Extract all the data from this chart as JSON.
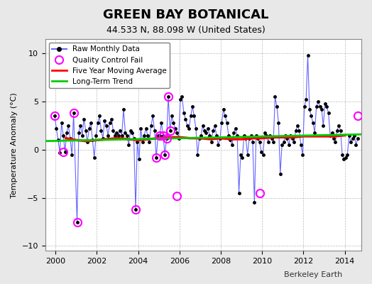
{
  "title": "GREEN BAY BOTANICAL",
  "subtitle": "44.533 N, 88.098 W (United States)",
  "ylabel": "Temperature Anomaly (°C)",
  "credit": "Berkeley Earth",
  "xlim": [
    1999.5,
    2014.8
  ],
  "ylim": [
    -10.5,
    11.5
  ],
  "yticks": [
    -10,
    -5,
    0,
    5,
    10
  ],
  "xticks": [
    2000,
    2002,
    2004,
    2006,
    2008,
    2010,
    2012,
    2014
  ],
  "bg_color": "#e8e8e8",
  "plot_bg_color": "#ffffff",
  "raw_color": "#6666ff",
  "raw_dot_color": "#000000",
  "qc_color": "#ff00ff",
  "ma_color": "#ff0000",
  "trend_color": "#00cc00",
  "raw_data_x": [
    1999.958,
    2000.042,
    2000.125,
    2000.208,
    2000.292,
    2000.375,
    2000.458,
    2000.542,
    2000.625,
    2000.708,
    2000.792,
    2000.875,
    2001.042,
    2001.125,
    2001.208,
    2001.292,
    2001.375,
    2001.458,
    2001.542,
    2001.625,
    2001.708,
    2001.792,
    2001.875,
    2001.958,
    2002.042,
    2002.125,
    2002.208,
    2002.292,
    2002.375,
    2002.458,
    2002.542,
    2002.625,
    2002.708,
    2002.792,
    2002.875,
    2002.958,
    2003.042,
    2003.125,
    2003.208,
    2003.292,
    2003.375,
    2003.458,
    2003.542,
    2003.625,
    2003.708,
    2003.792,
    2003.875,
    2003.958,
    2004.042,
    2004.125,
    2004.208,
    2004.292,
    2004.375,
    2004.458,
    2004.542,
    2004.625,
    2004.708,
    2004.792,
    2004.875,
    2004.958,
    2005.042,
    2005.125,
    2005.208,
    2005.292,
    2005.375,
    2005.458,
    2005.542,
    2005.625,
    2005.708,
    2005.792,
    2005.875,
    2005.958,
    2006.042,
    2006.125,
    2006.208,
    2006.292,
    2006.375,
    2006.458,
    2006.542,
    2006.625,
    2006.708,
    2006.792,
    2006.875,
    2006.958,
    2007.042,
    2007.125,
    2007.208,
    2007.292,
    2007.375,
    2007.458,
    2007.542,
    2007.625,
    2007.708,
    2007.792,
    2007.875,
    2007.958,
    2008.042,
    2008.125,
    2008.208,
    2008.292,
    2008.375,
    2008.458,
    2008.542,
    2008.625,
    2008.708,
    2008.792,
    2008.875,
    2008.958,
    2009.042,
    2009.125,
    2009.208,
    2009.292,
    2009.375,
    2009.458,
    2009.542,
    2009.625,
    2009.708,
    2009.792,
    2009.875,
    2009.958,
    2010.042,
    2010.125,
    2010.208,
    2010.292,
    2010.375,
    2010.458,
    2010.542,
    2010.625,
    2010.708,
    2010.792,
    2010.875,
    2010.958,
    2011.042,
    2011.125,
    2011.208,
    2011.292,
    2011.375,
    2011.458,
    2011.542,
    2011.625,
    2011.708,
    2011.792,
    2011.875,
    2011.958,
    2012.042,
    2012.125,
    2012.208,
    2012.292,
    2012.375,
    2012.458,
    2012.542,
    2012.625,
    2012.708,
    2012.792,
    2012.875,
    2012.958,
    2013.042,
    2013.125,
    2013.208,
    2013.292,
    2013.375,
    2013.458,
    2013.542,
    2013.625,
    2013.708,
    2013.792,
    2013.875,
    2013.958,
    2014.042,
    2014.125,
    2014.208,
    2014.292,
    2014.375,
    2014.458,
    2014.542,
    2014.625
  ],
  "raw_data_y": [
    3.5,
    2.2,
    1.0,
    -0.3,
    2.8,
    1.5,
    -0.2,
    1.8,
    2.5,
    1.2,
    -0.5,
    3.8,
    -7.5,
    1.8,
    2.5,
    1.5,
    3.2,
    2.0,
    0.8,
    2.2,
    2.8,
    1.0,
    -0.8,
    1.5,
    2.8,
    3.5,
    2.0,
    1.2,
    3.0,
    2.5,
    1.5,
    2.8,
    3.2,
    2.0,
    1.5,
    1.8,
    1.5,
    2.0,
    1.5,
    4.2,
    1.8,
    1.5,
    0.5,
    2.0,
    1.8,
    1.2,
    -6.2,
    0.8,
    -1.0,
    2.2,
    0.8,
    1.5,
    2.2,
    1.5,
    0.8,
    2.5,
    3.5,
    2.0,
    -0.8,
    1.5,
    1.5,
    2.8,
    1.5,
    -0.5,
    1.2,
    5.5,
    2.0,
    3.5,
    2.8,
    2.2,
    1.8,
    1.2,
    5.2,
    5.5,
    3.8,
    3.2,
    2.5,
    2.2,
    3.5,
    4.5,
    3.5,
    2.2,
    -0.5,
    1.2,
    1.5,
    2.5,
    2.0,
    1.8,
    2.2,
    1.5,
    0.8,
    2.0,
    2.5,
    1.5,
    0.5,
    1.2,
    2.8,
    4.2,
    3.5,
    2.8,
    1.5,
    1.0,
    0.5,
    1.8,
    2.2,
    1.5,
    -4.5,
    -0.5,
    -0.8,
    1.5,
    1.2,
    -0.5,
    1.2,
    1.5,
    0.8,
    -5.5,
    1.5,
    1.2,
    0.8,
    -0.2,
    -0.5,
    1.8,
    1.5,
    0.8,
    1.5,
    1.2,
    0.8,
    5.5,
    4.5,
    2.8,
    -2.5,
    0.5,
    0.8,
    1.5,
    1.2,
    0.5,
    1.5,
    1.2,
    0.8,
    2.0,
    2.5,
    2.0,
    0.5,
    -0.5,
    4.5,
    5.2,
    9.8,
    4.2,
    3.5,
    2.8,
    1.8,
    4.5,
    5.0,
    4.5,
    4.2,
    2.5,
    4.8,
    4.5,
    3.8,
    1.5,
    1.8,
    1.2,
    0.8,
    2.0,
    2.5,
    2.0,
    -0.5,
    -1.0,
    -0.8,
    -0.5,
    1.5,
    0.8,
    1.2,
    1.5,
    0.5,
    1.2
  ],
  "qc_fail_x": [
    1999.958,
    2000.375,
    2000.875,
    2001.042,
    2003.875,
    2004.875,
    2005.042,
    2005.208,
    2005.292,
    2005.375,
    2005.458,
    2005.542,
    2005.875,
    2009.875,
    2014.625
  ],
  "qc_fail_y": [
    3.5,
    -0.2,
    3.8,
    -7.5,
    -6.2,
    -0.8,
    1.5,
    1.5,
    -0.5,
    1.2,
    5.5,
    2.0,
    -4.8,
    -4.5,
    3.5
  ],
  "ma_x": [
    2000.5,
    2001.0,
    2001.5,
    2002.0,
    2002.5,
    2003.0,
    2003.5,
    2004.0,
    2004.5,
    2005.0,
    2005.5,
    2006.0,
    2006.5,
    2007.0,
    2007.5,
    2008.0,
    2008.5,
    2009.0,
    2009.5,
    2010.0,
    2010.5,
    2011.0,
    2011.5,
    2012.0,
    2012.5,
    2013.0,
    2013.5,
    2014.0
  ],
  "ma_y": [
    1.2,
    1.0,
    0.9,
    1.0,
    1.1,
    1.2,
    1.1,
    1.0,
    1.1,
    1.2,
    1.3,
    1.3,
    1.2,
    1.2,
    1.1,
    1.2,
    1.1,
    1.1,
    1.2,
    1.2,
    1.3,
    1.3,
    1.3,
    1.4,
    1.4,
    1.4,
    1.4,
    1.5
  ],
  "trend_x": [
    1999.5,
    2014.8
  ],
  "trend_y": [
    0.9,
    1.6
  ]
}
